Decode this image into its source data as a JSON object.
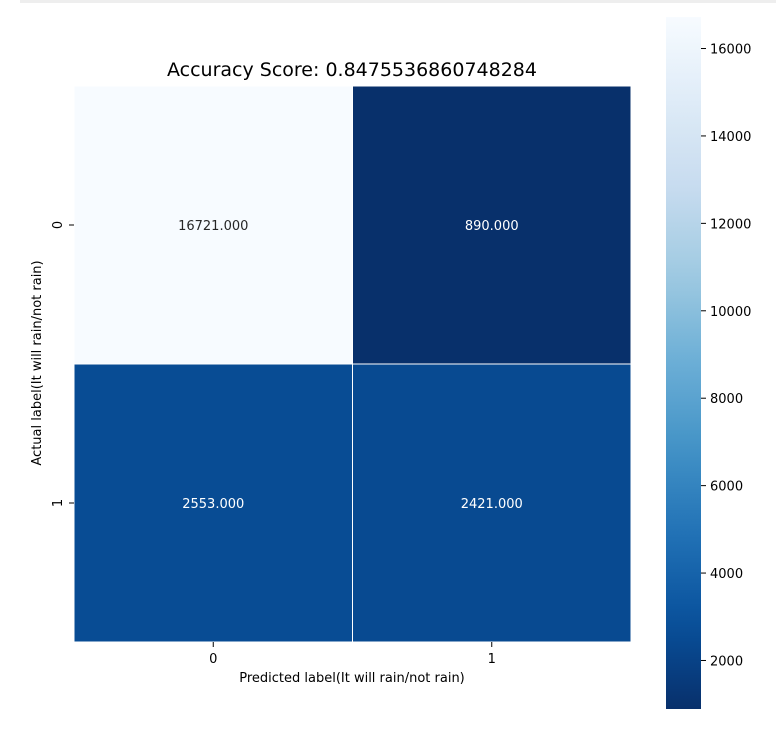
{
  "chart_data": {
    "type": "heatmap",
    "title": "Accuracy Score: 0.8475536860748284",
    "xlabel": "Predicted label(It will rain/not rain)",
    "ylabel": "Actual label(It will rain/not rain)",
    "x_categories": [
      "0",
      "1"
    ],
    "y_categories": [
      "0",
      "1"
    ],
    "values": [
      [
        16721,
        890
      ],
      [
        2553,
        2421
      ]
    ],
    "cell_labels": [
      [
        "16721.000",
        "890.000"
      ],
      [
        "2553.000",
        "2421.000"
      ]
    ],
    "colormap": "Blues_r",
    "colorbar": {
      "range": [
        890,
        16721
      ],
      "ticks": [
        2000,
        4000,
        6000,
        8000,
        10000,
        12000,
        14000,
        16000
      ],
      "tick_labels": [
        "2000",
        "4000",
        "6000",
        "8000",
        "10000",
        "12000",
        "14000",
        "16000"
      ]
    },
    "grid": false,
    "legend": "colorbar-right"
  }
}
